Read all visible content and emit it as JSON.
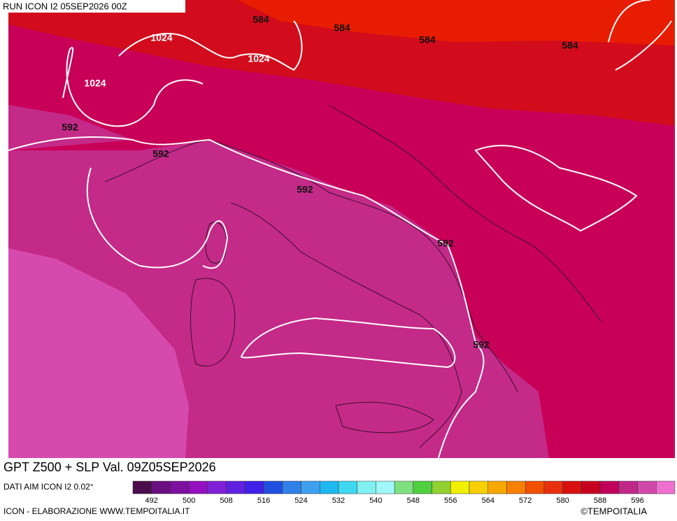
{
  "header": {
    "run": "RUN ICON I2 05SEP2026 00Z"
  },
  "map": {
    "contour_labels": [
      584,
      584,
      584,
      584,
      1024,
      1024,
      1024,
      592,
      592,
      592,
      592,
      592
    ]
  },
  "footer": {
    "title": "GPT Z500 + SLP Val. 09Z05SEP2026",
    "source": "DATI AIM ICON I2 0.02°",
    "credit": "ICON - ELABORAZIONE WWW.TEMPOITALIA.IT",
    "copyright": "©TEMPOITALIA"
  },
  "colorbar": {
    "range": [
      488,
      604
    ],
    "ticks": [
      492,
      500,
      508,
      516,
      524,
      532,
      540,
      548,
      556,
      564,
      572,
      580,
      588,
      596
    ],
    "colors": [
      "#4b0d4b",
      "#6a0f80",
      "#7d10a0",
      "#9410c0",
      "#8020d8",
      "#6020e0",
      "#4020e8",
      "#2050e0",
      "#3080e8",
      "#40a0f0",
      "#20b8f0",
      "#40d8f0",
      "#80f0f0",
      "#a0f8f8",
      "#80e080",
      "#50d040",
      "#90d030",
      "#f0f000",
      "#f8d000",
      "#f8a800",
      "#f88000",
      "#f05000",
      "#e83010",
      "#d81010",
      "#c80020",
      "#c0005a",
      "#c02888",
      "#d048a8",
      "#f070d0"
    ]
  }
}
